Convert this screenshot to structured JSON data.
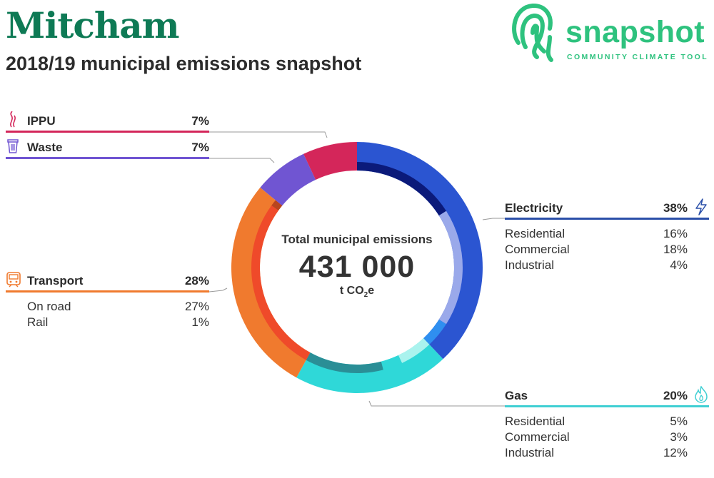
{
  "header": {
    "title": "Mitcham",
    "subtitle": "2018/19 municipal emissions snapshot"
  },
  "logo": {
    "word": "snapshot",
    "tagline": "COMMUNITY CLIMATE TOOL",
    "color": "#2ec27e"
  },
  "center": {
    "label": "Total municipal emissions",
    "value": "431 000",
    "unit_prefix": "t CO",
    "unit_sub": "2",
    "unit_suffix": "e"
  },
  "chart_data": {
    "type": "pie",
    "style": "donut",
    "total": 431000,
    "unit": "t CO2e",
    "sectors": [
      {
        "name": "Electricity",
        "value": 38,
        "color": "#2b55d1",
        "icon": "lightning-icon",
        "subsectors": [
          {
            "name": "Residential",
            "value": 16,
            "color": "#0b1a7a"
          },
          {
            "name": "Commercial",
            "value": 18,
            "color": "#9aa9ea"
          },
          {
            "name": "Industrial",
            "value": 4,
            "color": "#2f8ff0"
          }
        ]
      },
      {
        "name": "Gas",
        "value": 20,
        "color": "#2fd8d8",
        "icon": "flame-icon",
        "subsectors": [
          {
            "name": "Residential",
            "value": 5,
            "color": "#aaf3ee"
          },
          {
            "name": "Commercial",
            "value": 3,
            "color": "#2fd8d8"
          },
          {
            "name": "Industrial",
            "value": 12,
            "color": "#2a8e96"
          }
        ]
      },
      {
        "name": "Transport",
        "value": 28,
        "color": "#f07a2e",
        "icon": "train-icon",
        "subsectors": [
          {
            "name": "On road",
            "value": 27,
            "color": "#ef4a2a"
          },
          {
            "name": "Rail",
            "value": 1,
            "color": "#b8451e"
          }
        ]
      },
      {
        "name": "Waste",
        "value": 7,
        "color": "#7055d2",
        "icon": "trash-bin-icon",
        "subsectors": []
      },
      {
        "name": "IPPU",
        "value": 7,
        "color": "#d4265a",
        "icon": "smoke-icon",
        "subsectors": []
      }
    ]
  },
  "labels": {
    "electricity": {
      "label": "Electricity",
      "pct": "38%",
      "color": "#2a4fa8",
      "subs": [
        {
          "label": "Residential",
          "pct": "16%"
        },
        {
          "label": "Commercial",
          "pct": "18%"
        },
        {
          "label": "Industrial",
          "pct": "4%"
        }
      ]
    },
    "gas": {
      "label": "Gas",
      "pct": "20%",
      "color": "#3fcfd3",
      "subs": [
        {
          "label": "Residential",
          "pct": "5%"
        },
        {
          "label": "Commercial",
          "pct": "3%"
        },
        {
          "label": "Industrial",
          "pct": "12%"
        }
      ]
    },
    "transport": {
      "label": "Transport",
      "pct": "28%",
      "color": "#f07a2e",
      "subs": [
        {
          "label": "On road",
          "pct": "27%"
        },
        {
          "label": "Rail",
          "pct": "1%"
        }
      ]
    },
    "waste": {
      "label": "Waste",
      "pct": "7%",
      "color": "#7055d2"
    },
    "ippu": {
      "label": "IPPU",
      "pct": "7%",
      "color": "#d4265a"
    }
  }
}
